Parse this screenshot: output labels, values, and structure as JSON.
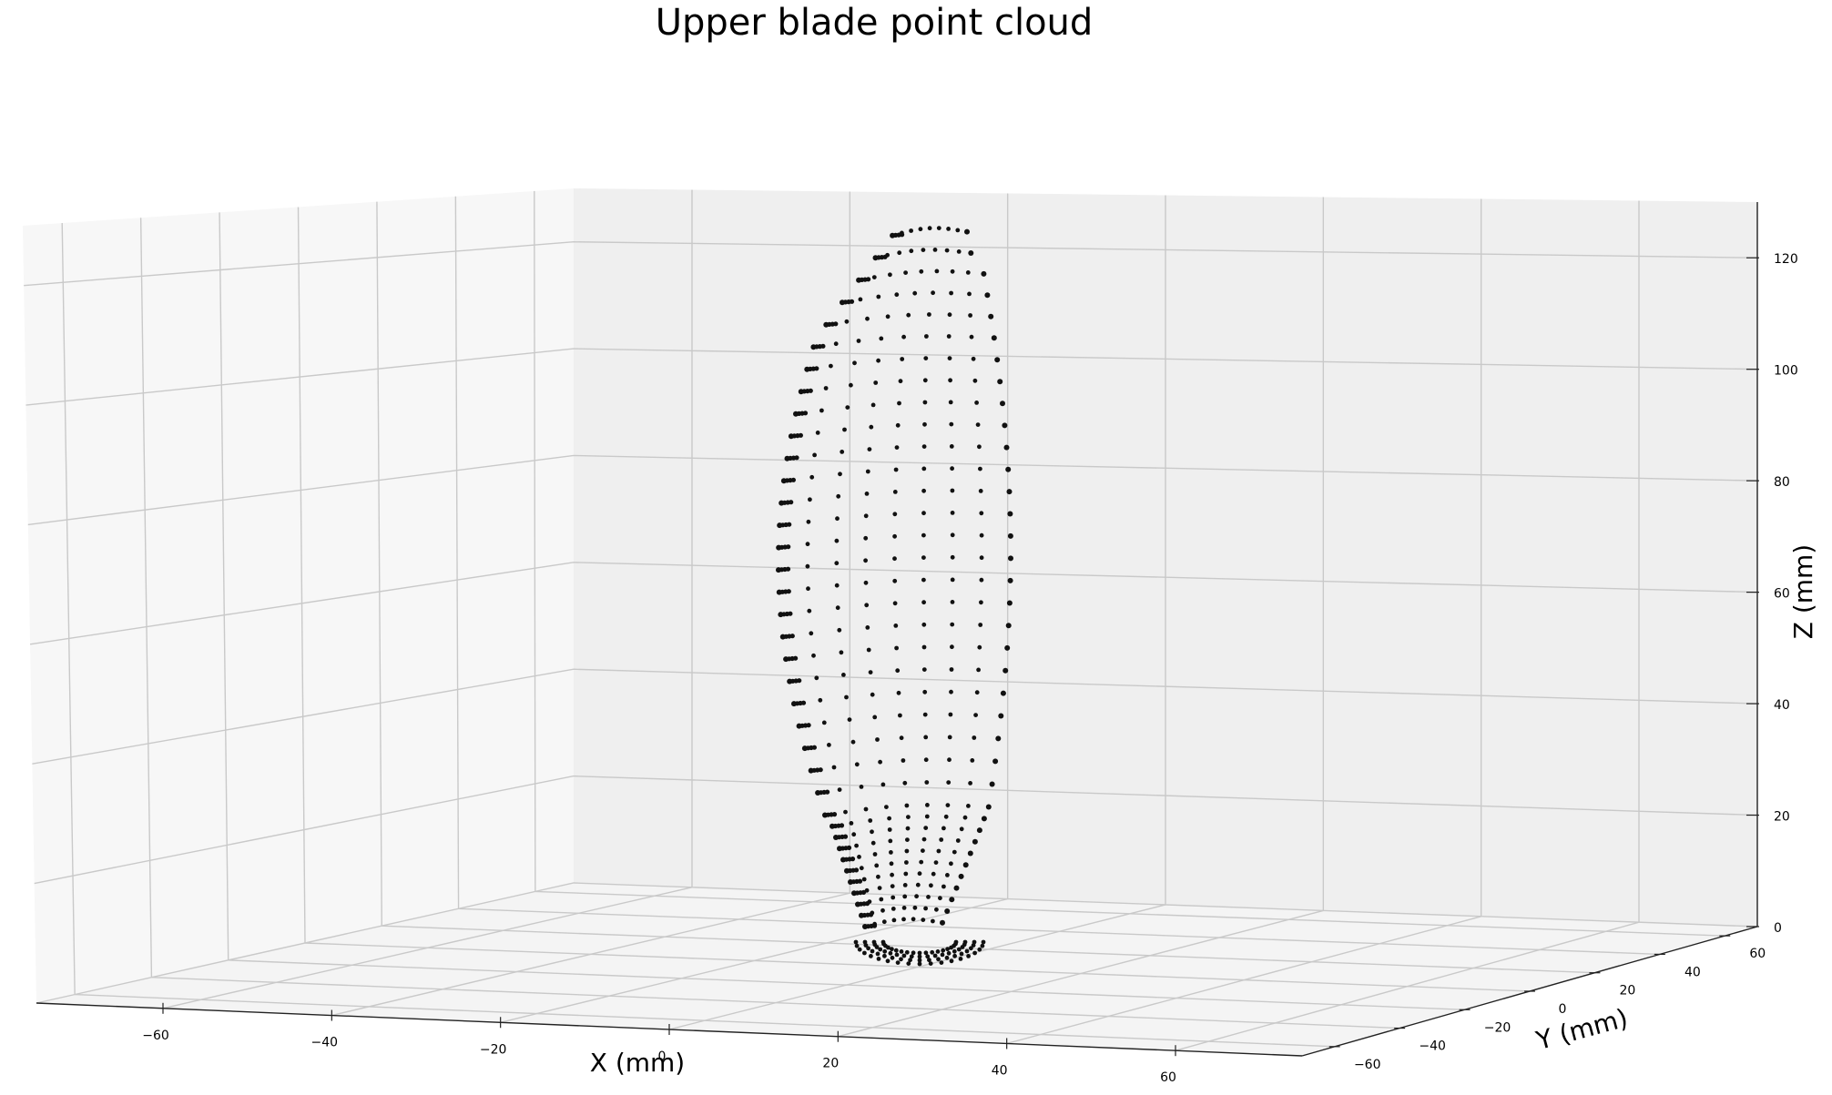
{
  "chart_data": {
    "type": "scatter",
    "projection": "3d",
    "title": "Upper blade point cloud",
    "xlabel": "X (mm)",
    "ylabel": "Y (mm)",
    "zlabel": "Z (mm)",
    "x_ticks": [
      "−60",
      "−40",
      "−20",
      "0",
      "20",
      "40",
      "60"
    ],
    "y_ticks": [
      "−60",
      "−40",
      "−20",
      "0",
      "20",
      "40",
      "60"
    ],
    "z_ticks": [
      "0",
      "20",
      "40",
      "60",
      "80",
      "100",
      "120"
    ],
    "xlim": [
      -75,
      75
    ],
    "ylim": [
      -70,
      70
    ],
    "zlim": [
      0,
      130
    ],
    "grid": true,
    "marker_color": "#111111",
    "point_cloud": {
      "z_levels": [
        0,
        2,
        4,
        6,
        8,
        10,
        12,
        14,
        16,
        18,
        20,
        24,
        28,
        32,
        36,
        40,
        44,
        48,
        52,
        56,
        60,
        64,
        68,
        72,
        76,
        80,
        84,
        88,
        92,
        96,
        100,
        104,
        108,
        112,
        116,
        120,
        124
      ],
      "note": ""
    }
  }
}
